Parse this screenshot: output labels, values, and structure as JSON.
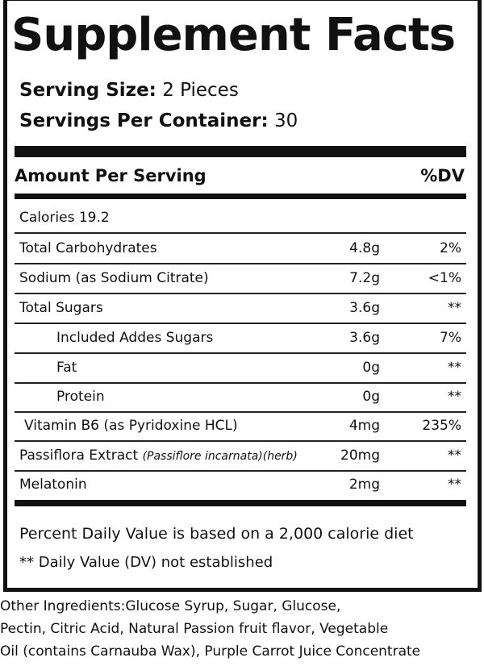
{
  "title": "Supplement Facts",
  "serving": {
    "size_label": "Serving Size:",
    "size_value": "2 Pieces",
    "per_container_label": "Servings Per Container:",
    "per_container_value": "30"
  },
  "header": {
    "amount": "Amount Per Serving",
    "dv": "%DV"
  },
  "calories": "Calories 19.2",
  "rows": [
    {
      "name": "Total Carbohydrates",
      "amount": "4.8g",
      "dv": "2%"
    },
    {
      "name": "Sodium (as Sodium Citrate)",
      "amount": "7.2g",
      "dv": "<1%"
    },
    {
      "name": "Total Sugars",
      "amount": "3.6g",
      "dv": "**"
    },
    {
      "name": "Included Addes Sugars",
      "amount": "3.6g",
      "dv": "7%"
    },
    {
      "name": "Fat",
      "amount": "0g",
      "dv": "**"
    },
    {
      "name": "Protein",
      "amount": "0g",
      "dv": "**"
    },
    {
      "name": "Vitamin B6 (as Pyridoxine HCL)",
      "amount": "4mg",
      "dv": "235%"
    },
    {
      "name": "Passiflora Extract",
      "note": "(Passiflore incarnata)(herb)",
      "amount": "20mg",
      "dv": "**"
    },
    {
      "name": "Melatonin",
      "amount": "2mg",
      "dv": "**"
    }
  ],
  "footnotes": {
    "daily_value": "Percent Daily Value is based on a 2,000 calorie diet",
    "not_established": "** Daily Value (DV) not established"
  },
  "other_ingredients": {
    "line1": "Other Ingredients:Glucose Syrup,  Sugar, Glucose,",
    "line2": "Pectin, Citric Acid, Natural Passion fruit flavor, Vegetable",
    "line3": "Oil (contains Carnauba Wax), Purple Carrot Juice Concentrate"
  }
}
